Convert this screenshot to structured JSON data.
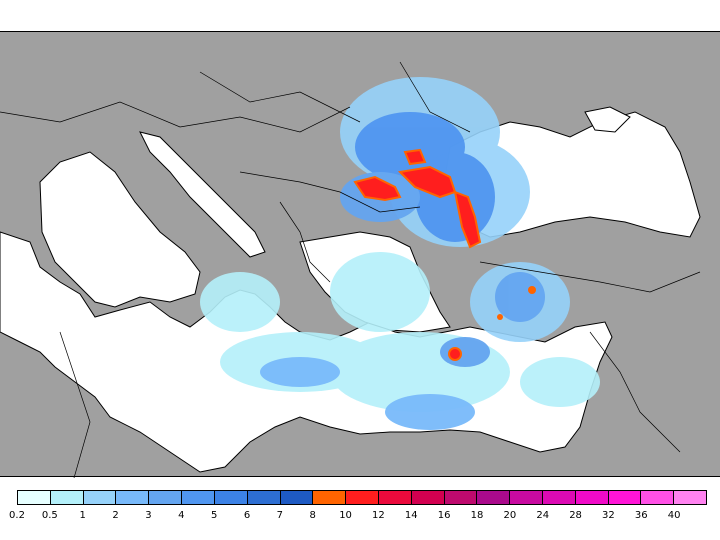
{
  "legend": {
    "labels": [
      "0.2",
      "0.5",
      "1",
      "2",
      "3",
      "4",
      "5",
      "6",
      "7",
      "8",
      "10",
      "12",
      "14",
      "16",
      "18",
      "20",
      "24",
      "28",
      "32",
      "36",
      "40"
    ],
    "colors": [
      "#e6ffff",
      "#b4f0fa",
      "#96d2fa",
      "#78b9fa",
      "#64a5f0",
      "#5096f0",
      "#3c82e6",
      "#2d6ed2",
      "#1e5ac3",
      "#ff6400",
      "#ff1e1e",
      "#eb0a3c",
      "#d20050",
      "#be0a6e",
      "#aa0a8c",
      "#c80aa0",
      "#dc0ab4",
      "#f00ac8",
      "#ff14d7",
      "#ff50e6",
      "#ff82f0"
    ]
  },
  "map": {
    "sea_color": "#ffffff",
    "land_color": "#a0a0a0"
  }
}
